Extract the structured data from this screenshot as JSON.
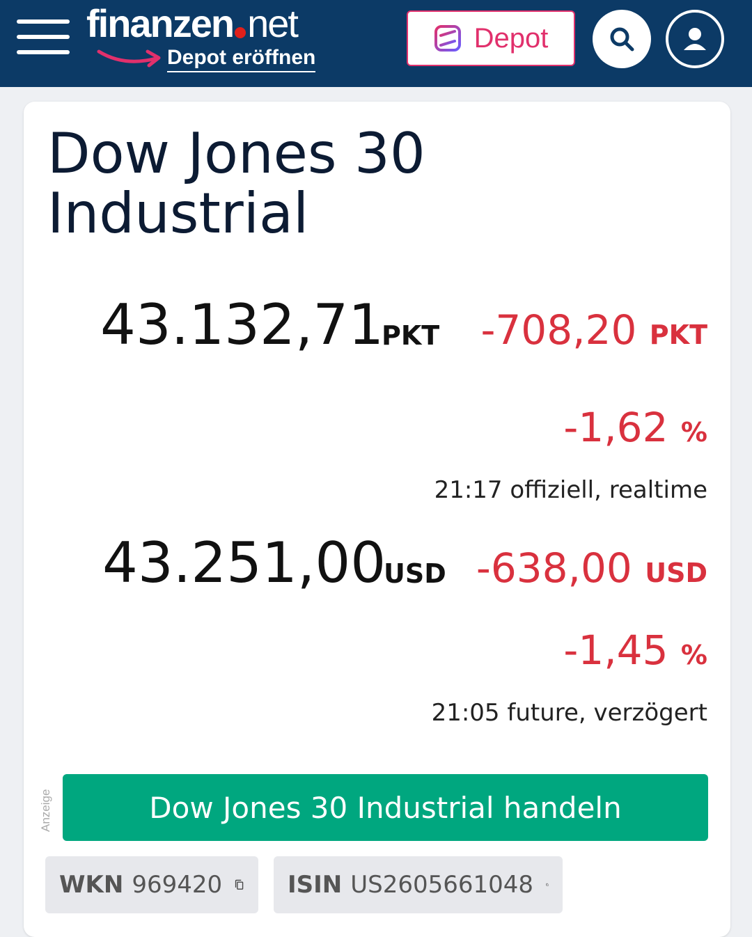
{
  "header": {
    "logo_prefix": "finanzen",
    "logo_suffix": "net",
    "depot_open_label": "Depot eröffnen",
    "depot_button_label": "Depot",
    "colors": {
      "bar": "#0c3a66",
      "accent": "#e1306c",
      "logo_dot": "#e0201b"
    }
  },
  "instrument": {
    "title": "Dow Jones 30 Industrial",
    "quotes": [
      {
        "price": "43.132,71",
        "unit": "PKT",
        "change": "-708,20",
        "change_unit": "PKT",
        "change_pct": "-1,62",
        "pct_unit": "%",
        "meta": "21:17 offiziell, realtime"
      },
      {
        "price": "43.251,00",
        "unit": "USD",
        "change": "-638,00",
        "change_unit": "USD",
        "change_pct": "-1,45",
        "pct_unit": "%",
        "meta": "21:05 future, verzögert"
      }
    ],
    "negative_color": "#d9313e"
  },
  "ad_label": "Anzeige",
  "trade_button_label": "Dow Jones 30 Industrial handeln",
  "trade_button_color": "#00a77f",
  "identifiers": {
    "wkn_label": "WKN",
    "wkn_value": "969420",
    "isin_label": "ISIN",
    "isin_value": "US2605661048"
  },
  "icons": [
    "menu-icon",
    "depot-logo-icon",
    "search-icon",
    "user-icon",
    "copy-icon"
  ]
}
